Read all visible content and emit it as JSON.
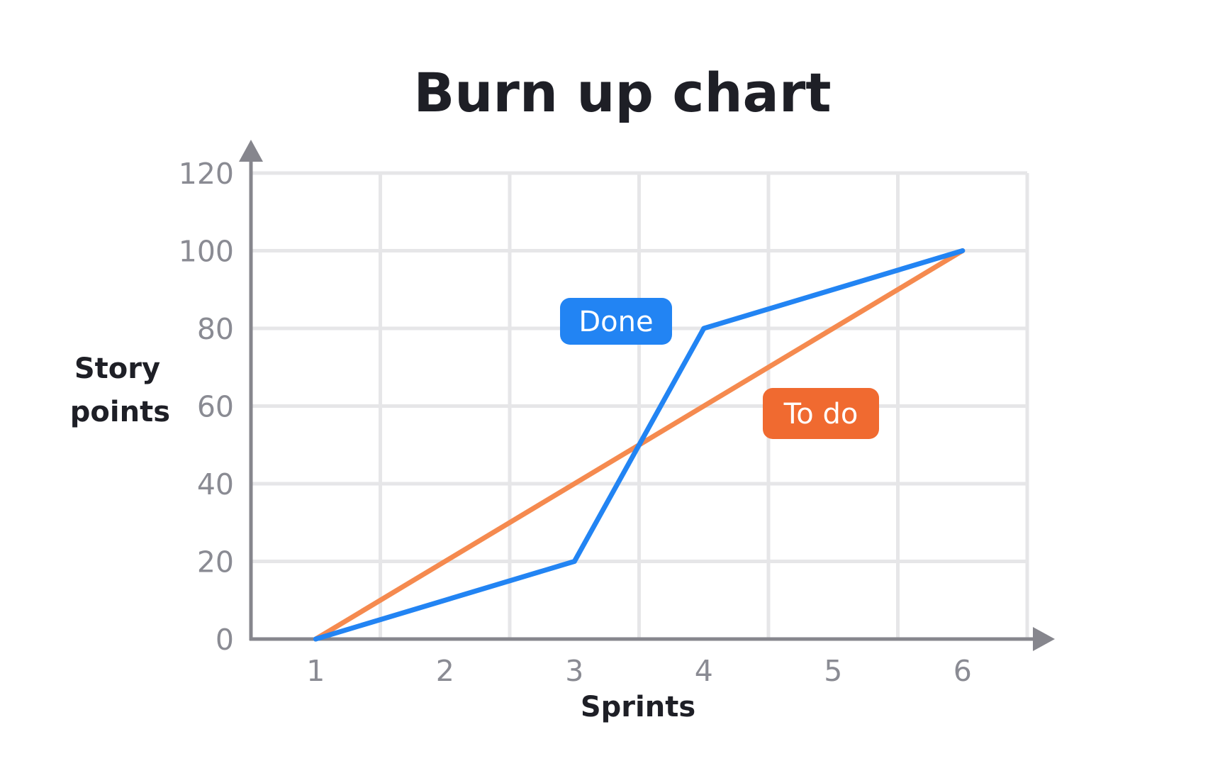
{
  "chart_data": {
    "type": "line",
    "title": "Burn up chart",
    "xlabel": "Sprints",
    "ylabel": [
      "Story",
      "points"
    ],
    "x": [
      1,
      2,
      3,
      4,
      5,
      6
    ],
    "x_tick_labels": [
      "1",
      "2",
      "3",
      "4",
      "5",
      "6"
    ],
    "y_ticks": [
      0,
      20,
      40,
      60,
      80,
      100,
      120
    ],
    "y_tick_labels": [
      "0",
      "20",
      "40",
      "60",
      "80",
      "100",
      "120"
    ],
    "xlim": [
      0.5,
      6.5
    ],
    "ylim": [
      0,
      120
    ],
    "grid": true,
    "legend": "inline labels",
    "series": [
      {
        "name": "To do",
        "color": "#f58a4f",
        "label_color": "#f06a30",
        "points": [
          [
            1,
            0
          ],
          [
            6,
            100
          ]
        ]
      },
      {
        "name": "Done",
        "color": "#2284f3",
        "label_color": "#2284f3",
        "points": [
          [
            1,
            0
          ],
          [
            3,
            20
          ],
          [
            4,
            80
          ],
          [
            6,
            100
          ]
        ]
      }
    ]
  }
}
